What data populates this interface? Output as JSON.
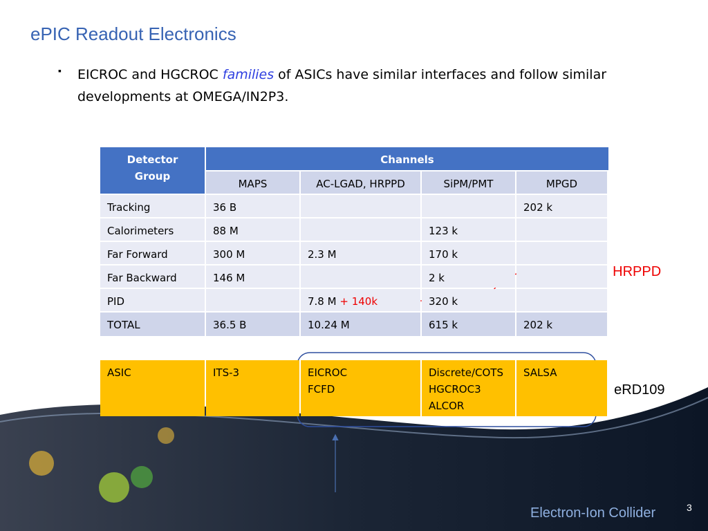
{
  "header": {
    "title": "ePIC Readout Electronics"
  },
  "bullet": {
    "before": "EICROC and HGCROC ",
    "emphasis": "families",
    "after": " of ASICs have similar interfaces and follow similar developments at OMEGA/IN2P3."
  },
  "table": {
    "group_header": "Detector Group",
    "channels_header": "Channels",
    "columns": [
      "MAPS",
      "AC-LGAD, HRPPD",
      "SiPM/PMT",
      "MPGD"
    ],
    "rows": [
      [
        "Tracking",
        "36 B",
        null,
        null,
        "202 k"
      ],
      [
        "Calorimeters",
        "88 M",
        null,
        "123 k",
        null
      ],
      [
        "Far Forward",
        "300 M",
        "2.3 M",
        "170 k",
        null
      ],
      [
        "Far Backward",
        "146 M",
        null,
        "2 k",
        null
      ],
      [
        "PID",
        null,
        {
          "text": "7.8 M",
          "addition": "+ 140k"
        },
        "320 k",
        null
      ]
    ],
    "total": [
      "TOTAL",
      "36.5 B",
      "10.24 M",
      "615 k",
      "202 k"
    ]
  },
  "asic_table": {
    "row": [
      [
        "ASIC"
      ],
      [
        "ITS-3"
      ],
      [
        "EICROC",
        "FCFD"
      ],
      [
        "Discrete/COTS",
        "HGCROC3",
        "ALCOR"
      ],
      [
        "SALSA"
      ]
    ]
  },
  "annotations": {
    "hrppd": "HRPPD",
    "erd109": "eRD109"
  },
  "footer": {
    "logo": "Electron-Ion Collider",
    "page": "3"
  }
}
